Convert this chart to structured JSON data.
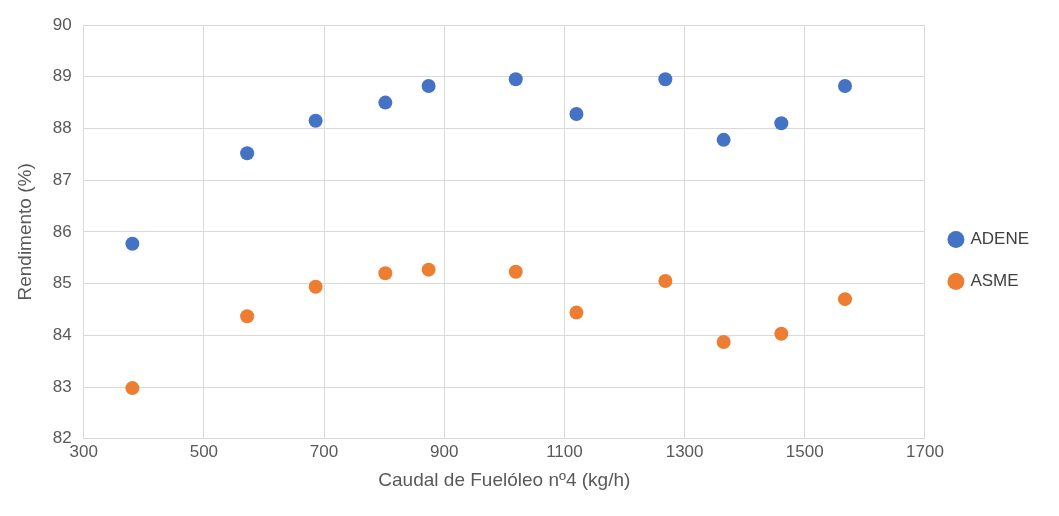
{
  "chart_data": {
    "type": "scatter",
    "xlabel": "Caudal de Fuelóleo nº4 (kg/h)",
    "ylabel": "Rendimento (%)",
    "x": [
      381,
      572,
      686,
      802,
      874,
      1019,
      1120,
      1268,
      1365,
      1461,
      1567
    ],
    "series": [
      {
        "name": "ADENE",
        "color": "#4472c4",
        "values": [
          85.77,
          87.52,
          88.15,
          88.5,
          88.82,
          88.95,
          88.28,
          88.95,
          87.78,
          88.1,
          88.82
        ]
      },
      {
        "name": "ASME",
        "color": "#ed7d31",
        "values": [
          82.98,
          84.37,
          84.94,
          85.2,
          85.27,
          85.23,
          84.44,
          85.05,
          83.87,
          84.03,
          84.7
        ]
      }
    ],
    "xlim": [
      300,
      1700
    ],
    "xticks": [
      300,
      500,
      700,
      900,
      1100,
      1300,
      1500,
      1700
    ],
    "ylim": [
      82,
      90
    ],
    "yticks": [
      82,
      83,
      84,
      85,
      86,
      87,
      88,
      89,
      90
    ],
    "grid": true,
    "legend": "right",
    "marker": "circle"
  }
}
